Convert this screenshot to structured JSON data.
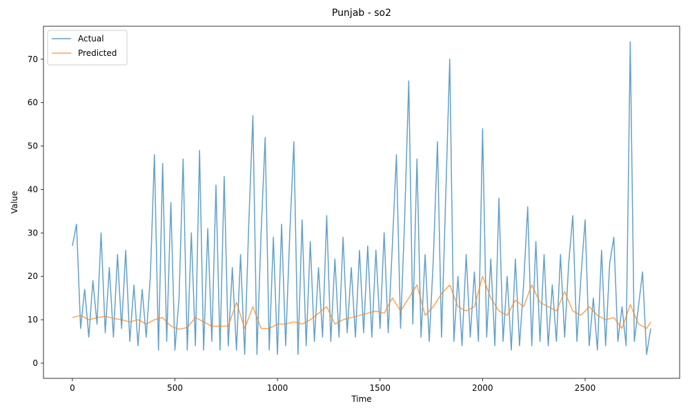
{
  "chart_data": {
    "type": "line",
    "title": "Punjab - so2",
    "x_label": "Time",
    "y_label": "Value",
    "xlim": [
      -141,
      2961
    ],
    "ylim": [
      -3.5,
      77.6
    ],
    "xticks": [
      0,
      500,
      1000,
      1500,
      2000,
      2500
    ],
    "yticks": [
      0,
      10,
      20,
      30,
      40,
      50,
      60,
      70
    ],
    "legend": "upper left",
    "series": [
      {
        "name": "Actual",
        "color": "#1f77b4",
        "x": [
          0,
          20,
          40,
          60,
          80,
          100,
          120,
          140,
          160,
          180,
          200,
          220,
          240,
          260,
          280,
          300,
          320,
          340,
          360,
          380,
          400,
          420,
          440,
          460,
          480,
          500,
          520,
          540,
          560,
          580,
          600,
          620,
          640,
          660,
          680,
          700,
          720,
          740,
          760,
          780,
          800,
          820,
          840,
          860,
          880,
          900,
          920,
          940,
          960,
          980,
          1000,
          1020,
          1040,
          1060,
          1080,
          1100,
          1120,
          1140,
          1160,
          1180,
          1200,
          1220,
          1240,
          1260,
          1280,
          1300,
          1320,
          1340,
          1360,
          1380,
          1400,
          1420,
          1440,
          1460,
          1480,
          1500,
          1520,
          1540,
          1560,
          1580,
          1600,
          1620,
          1640,
          1660,
          1680,
          1700,
          1720,
          1740,
          1760,
          1780,
          1800,
          1820,
          1840,
          1860,
          1880,
          1900,
          1920,
          1940,
          1960,
          1980,
          2000,
          2020,
          2040,
          2060,
          2080,
          2100,
          2120,
          2140,
          2160,
          2180,
          2200,
          2220,
          2240,
          2260,
          2280,
          2300,
          2320,
          2340,
          2360,
          2380,
          2400,
          2420,
          2440,
          2460,
          2480,
          2500,
          2520,
          2540,
          2560,
          2580,
          2600,
          2620,
          2640,
          2660,
          2680,
          2700,
          2720,
          2740,
          2760,
          2780,
          2800,
          2820
        ],
        "values": [
          27,
          32,
          8,
          17,
          6,
          19,
          9,
          30,
          7,
          22,
          6,
          25,
          8,
          26,
          5,
          18,
          4,
          17,
          6,
          20,
          48,
          3,
          46,
          5,
          37,
          3,
          15,
          47,
          3,
          30,
          4,
          49,
          3,
          31,
          5,
          41,
          3,
          43,
          4,
          22,
          3,
          25,
          2,
          32,
          57,
          2,
          30,
          52,
          3,
          29,
          2,
          32,
          4,
          30,
          51,
          2,
          33,
          4,
          28,
          5,
          22,
          6,
          34,
          5,
          24,
          6,
          29,
          7,
          22,
          6,
          26,
          7,
          27,
          6,
          26,
          8,
          30,
          7,
          27,
          48,
          8,
          33,
          65,
          9,
          47,
          6,
          25,
          5,
          24,
          51,
          6,
          38,
          70,
          5,
          20,
          4,
          25,
          6,
          21,
          5,
          54,
          6,
          24,
          4,
          38,
          5,
          20,
          3,
          24,
          4,
          18,
          36,
          4,
          28,
          5,
          25,
          4,
          18,
          5,
          25,
          6,
          23,
          34,
          5,
          20,
          33,
          4,
          15,
          3,
          26,
          4,
          23,
          29,
          5,
          13,
          4,
          74,
          5,
          13,
          21,
          2,
          8
        ]
      },
      {
        "name": "Predicted",
        "color": "#ff7f0e",
        "x": [
          0,
          40,
          80,
          120,
          160,
          200,
          240,
          280,
          320,
          360,
          400,
          440,
          480,
          520,
          560,
          600,
          640,
          680,
          720,
          760,
          800,
          840,
          880,
          920,
          960,
          1000,
          1040,
          1080,
          1120,
          1160,
          1200,
          1240,
          1280,
          1320,
          1360,
          1400,
          1440,
          1480,
          1520,
          1560,
          1600,
          1640,
          1680,
          1720,
          1760,
          1800,
          1840,
          1880,
          1920,
          1960,
          2000,
          2040,
          2080,
          2120,
          2160,
          2200,
          2240,
          2280,
          2320,
          2360,
          2400,
          2440,
          2480,
          2520,
          2560,
          2600,
          2640,
          2680,
          2720,
          2760,
          2800,
          2820
        ],
        "values": [
          10.5,
          11,
          10,
          10.5,
          10.8,
          10.3,
          10,
          9.5,
          10,
          9,
          10,
          10.5,
          8.5,
          7.8,
          8.2,
          10.5,
          9.5,
          8.5,
          8.5,
          8.5,
          14,
          8,
          13,
          8,
          8,
          9,
          9,
          9.5,
          9,
          10,
          11.5,
          13,
          9,
          10,
          10.5,
          11,
          11.5,
          12,
          11.5,
          15,
          12,
          15,
          18,
          11,
          13,
          16,
          18,
          13,
          12,
          13,
          20,
          15,
          12,
          11,
          14.5,
          13,
          18,
          14,
          13,
          12,
          16.5,
          12,
          11,
          13,
          11,
          10,
          10.5,
          8,
          13.5,
          9,
          8,
          9.5
        ]
      }
    ]
  }
}
